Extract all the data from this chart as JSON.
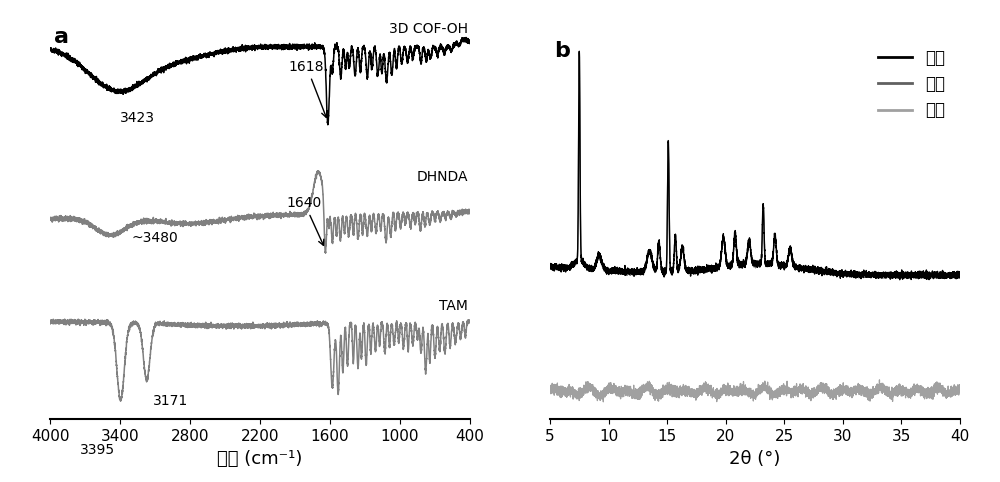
{
  "panel_a_label": "a",
  "panel_b_label": "b",
  "ir_xlim": [
    4000,
    400
  ],
  "ir_xlabel": "波数 (cm⁻¹)",
  "ir_xticks": [
    4000,
    3400,
    2800,
    2200,
    1600,
    1000,
    400
  ],
  "ir_labels": [
    "3D COF-OH",
    "DHNDA",
    "TAM"
  ],
  "ir_colors": [
    "#000000",
    "#808080",
    "#808080"
  ],
  "xrd_xlim": [
    5,
    40
  ],
  "xrd_xlabel": "2θ (°)",
  "xrd_xticks": [
    5,
    10,
    15,
    20,
    25,
    30,
    35,
    40
  ],
  "xrd_legend": [
    "实验",
    "精修",
    "误差"
  ],
  "xrd_colors": [
    "#000000",
    "#606060",
    "#a0a0a0"
  ]
}
